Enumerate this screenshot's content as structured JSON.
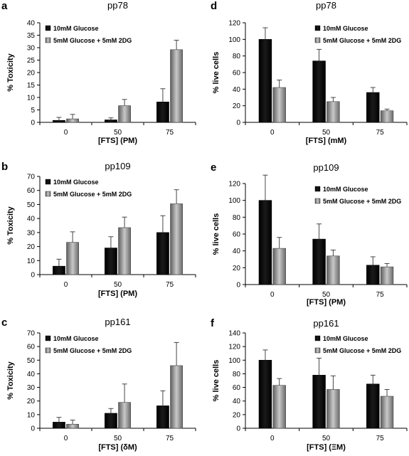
{
  "chart_data": [
    {
      "id": "a",
      "letter": "a",
      "type": "bar",
      "title": "pp78",
      "xlabel": "[FTS] (PM)",
      "ylabel": "% Toxicity",
      "ylim": [
        0,
        40
      ],
      "yticks": [
        0,
        5,
        10,
        15,
        20,
        25,
        30,
        35,
        40
      ],
      "categories": [
        "0",
        "50",
        "75"
      ],
      "series": [
        {
          "name": "10mM Glucose",
          "values": [
            0.8,
            1.0,
            8.2
          ],
          "errors": [
            1.2,
            0.8,
            5.3
          ],
          "color": "#000000"
        },
        {
          "name": "5mM Glucose + 5mM 2DG",
          "values": [
            1.4,
            6.7,
            29.2
          ],
          "errors": [
            1.8,
            2.5,
            3.8
          ],
          "color": "#8a8a8a"
        }
      ],
      "legend": "top-left"
    },
    {
      "id": "b",
      "letter": "b",
      "type": "bar",
      "title": "pp109",
      "xlabel": "[FTS] (PM)",
      "ylabel": "% Toxicity",
      "ylim": [
        0,
        70
      ],
      "yticks": [
        0,
        10,
        20,
        30,
        40,
        50,
        60,
        70
      ],
      "categories": [
        "0",
        "50",
        "75"
      ],
      "series": [
        {
          "name": "10mM Glucose",
          "values": [
            6,
            19,
            30
          ],
          "errors": [
            5,
            8,
            12
          ],
          "color": "#000000"
        },
        {
          "name": "5mM Glucose + 5mM 2DG",
          "values": [
            23,
            33.5,
            50.5
          ],
          "errors": [
            7.5,
            7.5,
            10
          ],
          "color": "#8a8a8a"
        }
      ],
      "legend": "top-left"
    },
    {
      "id": "c",
      "letter": "c",
      "type": "bar",
      "title": "pp161",
      "xlabel": "[FTS] (δM)",
      "ylabel": "% Toxicity",
      "ylim": [
        0,
        70
      ],
      "yticks": [
        0,
        10,
        20,
        30,
        40,
        50,
        60,
        70
      ],
      "categories": [
        "0",
        "50",
        "75"
      ],
      "series": [
        {
          "name": "10mM Glucose",
          "values": [
            4.5,
            11,
            16.5
          ],
          "errors": [
            3.5,
            3.5,
            11
          ],
          "color": "#000000"
        },
        {
          "name": "5mM Glucose + 5mM 2DG",
          "values": [
            3,
            19,
            46
          ],
          "errors": [
            3,
            13.5,
            17
          ],
          "color": "#8a8a8a"
        }
      ],
      "legend": "top-left"
    },
    {
      "id": "d",
      "letter": "d",
      "type": "bar",
      "title": "pp78",
      "xlabel": "[FTS] (mM)",
      "ylabel": "% live cells",
      "ylim": [
        0,
        120
      ],
      "yticks": [
        0,
        20,
        40,
        60,
        80,
        100,
        120
      ],
      "categories": [
        "0",
        "50",
        "75"
      ],
      "series": [
        {
          "name": "10mM Glucose",
          "values": [
            100,
            74,
            36
          ],
          "errors": [
            14,
            14,
            6
          ],
          "color": "#000000"
        },
        {
          "name": "5mM Glucose + 5mM 2DG",
          "values": [
            42,
            25,
            14
          ],
          "errors": [
            9,
            5,
            2
          ],
          "color": "#8a8a8a"
        }
      ],
      "legend": "top-right"
    },
    {
      "id": "e",
      "letter": "e",
      "type": "bar",
      "title": "pp109",
      "xlabel": "[FTS] (PM)",
      "ylabel": "% live cells",
      "ylim": [
        0,
        120
      ],
      "yticks": [
        0,
        20,
        40,
        60,
        80,
        100,
        120
      ],
      "categories": [
        "0",
        "50",
        "75"
      ],
      "series": [
        {
          "name": "10mM Glucose",
          "values": [
            100,
            54,
            23
          ],
          "errors": [
            30,
            18,
            10
          ],
          "color": "#000000"
        },
        {
          "name": "5mM Glucose + 5mM 2DG",
          "values": [
            43,
            34,
            21
          ],
          "errors": [
            13,
            7,
            4
          ],
          "color": "#8a8a8a"
        }
      ],
      "legend": "top-right"
    },
    {
      "id": "f",
      "letter": "f",
      "type": "bar",
      "title": "pp161",
      "xlabel": "[FTS] (ΞM)",
      "ylabel": "% live cells",
      "ylim": [
        0,
        140
      ],
      "yticks": [
        0,
        20,
        40,
        60,
        80,
        100,
        120,
        140
      ],
      "categories": [
        "0",
        "50",
        "75"
      ],
      "series": [
        {
          "name": "10mM Glucose",
          "values": [
            100,
            78,
            65
          ],
          "errors": [
            15,
            25,
            13
          ],
          "color": "#000000"
        },
        {
          "name": "5mM Glucose + 5mM 2DG",
          "values": [
            63,
            57,
            47
          ],
          "errors": [
            10,
            20,
            10
          ],
          "color": "#8a8a8a"
        }
      ],
      "legend": "top-right"
    }
  ]
}
